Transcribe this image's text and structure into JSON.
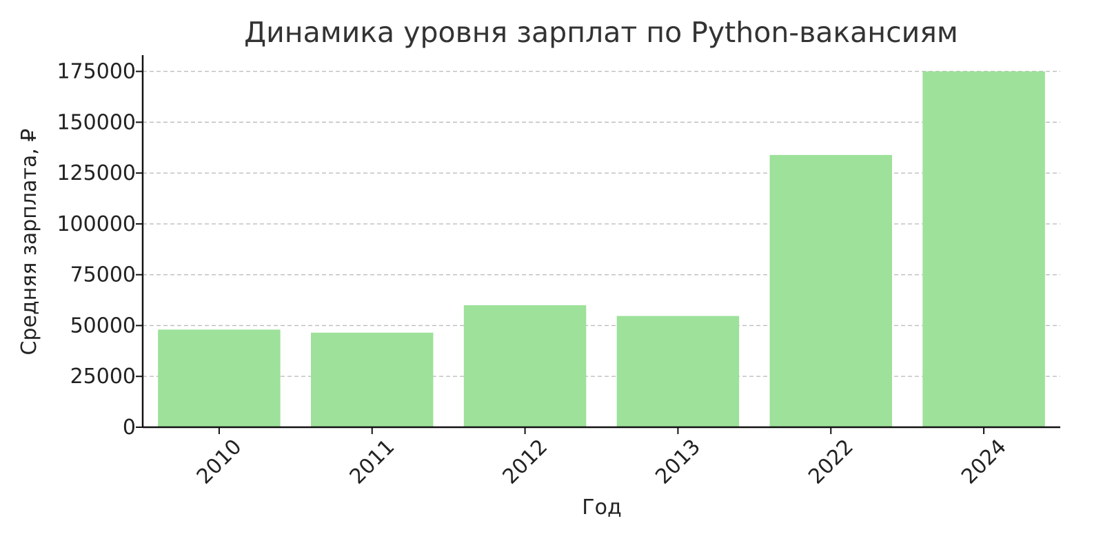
{
  "chart_data": {
    "type": "bar",
    "title": "Динамика уровня зарплат по Python-вакансиям",
    "xlabel": "Год",
    "ylabel": "Средняя зарплата, ₽",
    "categories": [
      "2010",
      "2011",
      "2012",
      "2013",
      "2022",
      "2024"
    ],
    "values": [
      48000,
      46500,
      60000,
      54700,
      133900,
      175000
    ],
    "ylim": [
      0,
      183000
    ],
    "yticks": [
      0,
      25000,
      50000,
      75000,
      100000,
      125000,
      150000,
      175000
    ],
    "ytick_labels": [
      "0",
      "25000",
      "50000",
      "75000",
      "100000",
      "125000",
      "150000",
      "175000"
    ],
    "grid": "y",
    "legend": "none",
    "bar_color": "#9de19a"
  }
}
